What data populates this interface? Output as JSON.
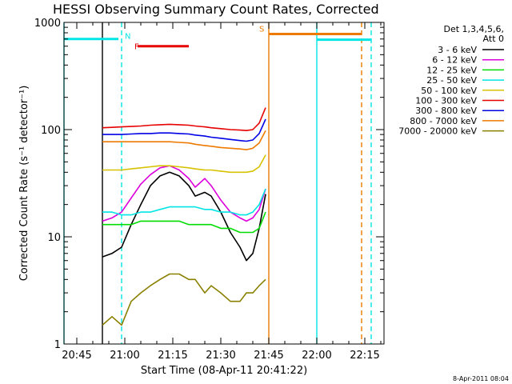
{
  "chart_data": {
    "type": "line",
    "title": "HESSI Observing Summary Count Rates, Corrected",
    "xlabel": "Start Time (08-Apr-11 20:41:22)",
    "ylabel": "Corrected Count Rate (s⁻¹ detector⁻¹)",
    "footer": "8-Apr-2011 08:04",
    "yscale": "log",
    "xlim": [
      "20:41",
      "22:21"
    ],
    "ylim": [
      1,
      1000
    ],
    "x_ticks": [
      "20:45",
      "21:00",
      "21:15",
      "21:30",
      "21:45",
      "22:00",
      "22:15"
    ],
    "y_ticks": [
      "1",
      "10",
      "100",
      "1000"
    ],
    "legend_header": [
      "Det 1,3,4,5,6,",
      "Att 0"
    ],
    "series": [
      {
        "name": "3 - 6 keV",
        "color": "#000000",
        "points": [
          [
            "20:53",
            6.5
          ],
          [
            "20:56",
            7
          ],
          [
            "20:59",
            8
          ],
          [
            "21:02",
            13
          ],
          [
            "21:05",
            20
          ],
          [
            "21:08",
            30
          ],
          [
            "21:11",
            37
          ],
          [
            "21:14",
            40
          ],
          [
            "21:17",
            37
          ],
          [
            "21:20",
            30
          ],
          [
            "21:22",
            24
          ],
          [
            "21:25",
            26
          ],
          [
            "21:27",
            24
          ],
          [
            "21:30",
            17
          ],
          [
            "21:33",
            11
          ],
          [
            "21:36",
            8
          ],
          [
            "21:38",
            6
          ],
          [
            "21:40",
            7
          ],
          [
            "21:42",
            12
          ],
          [
            "21:44",
            25
          ]
        ]
      },
      {
        "name": "6 - 12 keV",
        "color": "#dd00dd",
        "points": [
          [
            "20:53",
            14
          ],
          [
            "20:56",
            15
          ],
          [
            "20:59",
            17
          ],
          [
            "21:02",
            23
          ],
          [
            "21:05",
            31
          ],
          [
            "21:08",
            38
          ],
          [
            "21:11",
            44
          ],
          [
            "21:14",
            46
          ],
          [
            "21:17",
            42
          ],
          [
            "21:20",
            35
          ],
          [
            "21:22",
            29
          ],
          [
            "21:25",
            35
          ],
          [
            "21:27",
            30
          ],
          [
            "21:30",
            22
          ],
          [
            "21:33",
            17
          ],
          [
            "21:36",
            15
          ],
          [
            "21:38",
            14
          ],
          [
            "21:40",
            15
          ],
          [
            "21:42",
            18
          ],
          [
            "21:44",
            28
          ]
        ]
      },
      {
        "name": "12 - 25 keV",
        "color": "#00dd00",
        "points": [
          [
            "20:53",
            13
          ],
          [
            "20:56",
            13
          ],
          [
            "20:59",
            13
          ],
          [
            "21:02",
            13
          ],
          [
            "21:05",
            14
          ],
          [
            "21:08",
            14
          ],
          [
            "21:11",
            14
          ],
          [
            "21:14",
            14
          ],
          [
            "21:17",
            14
          ],
          [
            "21:20",
            13
          ],
          [
            "21:22",
            13
          ],
          [
            "21:25",
            13
          ],
          [
            "21:27",
            13
          ],
          [
            "21:30",
            12
          ],
          [
            "21:33",
            12
          ],
          [
            "21:36",
            11
          ],
          [
            "21:38",
            11
          ],
          [
            "21:40",
            11
          ],
          [
            "21:42",
            12
          ],
          [
            "21:44",
            17
          ]
        ]
      },
      {
        "name": "25 - 50 keV",
        "color": "#00e5e5",
        "points": [
          [
            "20:53",
            17
          ],
          [
            "20:56",
            17
          ],
          [
            "20:59",
            16
          ],
          [
            "21:02",
            16
          ],
          [
            "21:05",
            17
          ],
          [
            "21:08",
            17
          ],
          [
            "21:11",
            18
          ],
          [
            "21:14",
            19
          ],
          [
            "21:17",
            19
          ],
          [
            "21:20",
            19
          ],
          [
            "21:22",
            19
          ],
          [
            "21:25",
            18
          ],
          [
            "21:27",
            18
          ],
          [
            "21:30",
            17
          ],
          [
            "21:33",
            17
          ],
          [
            "21:36",
            16
          ],
          [
            "21:38",
            16
          ],
          [
            "21:40",
            17
          ],
          [
            "21:42",
            20
          ],
          [
            "21:44",
            28
          ]
        ]
      },
      {
        "name": "50 - 100 keV",
        "color": "#d6c200",
        "points": [
          [
            "20:53",
            42
          ],
          [
            "20:56",
            42
          ],
          [
            "20:59",
            42
          ],
          [
            "21:02",
            43
          ],
          [
            "21:05",
            44
          ],
          [
            "21:08",
            45
          ],
          [
            "21:11",
            46
          ],
          [
            "21:14",
            46
          ],
          [
            "21:17",
            45
          ],
          [
            "21:20",
            44
          ],
          [
            "21:22",
            43
          ],
          [
            "21:25",
            42
          ],
          [
            "21:27",
            42
          ],
          [
            "21:30",
            41
          ],
          [
            "21:33",
            40
          ],
          [
            "21:36",
            40
          ],
          [
            "21:38",
            40
          ],
          [
            "21:40",
            41
          ],
          [
            "21:42",
            45
          ],
          [
            "21:44",
            58
          ]
        ]
      },
      {
        "name": "100 - 300 keV",
        "color": "#e60000",
        "points": [
          [
            "20:53",
            104
          ],
          [
            "20:56",
            105
          ],
          [
            "20:59",
            106
          ],
          [
            "21:02",
            107
          ],
          [
            "21:05",
            108
          ],
          [
            "21:08",
            110
          ],
          [
            "21:11",
            111
          ],
          [
            "21:14",
            112
          ],
          [
            "21:17",
            111
          ],
          [
            "21:20",
            110
          ],
          [
            "21:22",
            108
          ],
          [
            "21:25",
            106
          ],
          [
            "21:27",
            104
          ],
          [
            "21:30",
            102
          ],
          [
            "21:33",
            100
          ],
          [
            "21:36",
            99
          ],
          [
            "21:38",
            98
          ],
          [
            "21:40",
            100
          ],
          [
            "21:42",
            115
          ],
          [
            "21:44",
            160
          ]
        ]
      },
      {
        "name": "300 - 800 keV",
        "color": "#0000e6",
        "points": [
          [
            "20:53",
            90
          ],
          [
            "20:56",
            90
          ],
          [
            "20:59",
            90
          ],
          [
            "21:02",
            91
          ],
          [
            "21:05",
            92
          ],
          [
            "21:08",
            92
          ],
          [
            "21:11",
            93
          ],
          [
            "21:14",
            93
          ],
          [
            "21:17",
            92
          ],
          [
            "21:20",
            91
          ],
          [
            "21:22",
            89
          ],
          [
            "21:25",
            87
          ],
          [
            "21:27",
            85
          ],
          [
            "21:30",
            83
          ],
          [
            "21:33",
            81
          ],
          [
            "21:36",
            79
          ],
          [
            "21:38",
            78
          ],
          [
            "21:40",
            80
          ],
          [
            "21:42",
            92
          ],
          [
            "21:44",
            125
          ]
        ]
      },
      {
        "name": "800 - 7000 keV",
        "color": "#ee7a00",
        "points": [
          [
            "20:53",
            77
          ],
          [
            "20:56",
            77
          ],
          [
            "20:59",
            77
          ],
          [
            "21:02",
            77
          ],
          [
            "21:05",
            77
          ],
          [
            "21:08",
            77
          ],
          [
            "21:11",
            77
          ],
          [
            "21:14",
            77
          ],
          [
            "21:17",
            76
          ],
          [
            "21:20",
            75
          ],
          [
            "21:22",
            73
          ],
          [
            "21:25",
            71
          ],
          [
            "21:27",
            70
          ],
          [
            "21:30",
            68
          ],
          [
            "21:33",
            67
          ],
          [
            "21:36",
            66
          ],
          [
            "21:38",
            65
          ],
          [
            "21:40",
            67
          ],
          [
            "21:42",
            75
          ],
          [
            "21:44",
            98
          ]
        ]
      },
      {
        "name": "7000 - 20000 keV",
        "color": "#8a8000",
        "points": [
          [
            "20:53",
            1.5
          ],
          [
            "20:56",
            1.8
          ],
          [
            "20:59",
            1.5
          ],
          [
            "21:02",
            2.5
          ],
          [
            "21:05",
            3
          ],
          [
            "21:08",
            3.5
          ],
          [
            "21:11",
            4
          ],
          [
            "21:14",
            4.5
          ],
          [
            "21:17",
            4.5
          ],
          [
            "21:20",
            4
          ],
          [
            "21:22",
            4
          ],
          [
            "21:25",
            3
          ],
          [
            "21:27",
            3.5
          ],
          [
            "21:30",
            3
          ],
          [
            "21:33",
            2.5
          ],
          [
            "21:36",
            2.5
          ],
          [
            "21:38",
            3
          ],
          [
            "21:40",
            3
          ],
          [
            "21:42",
            3.5
          ],
          [
            "21:44",
            4
          ]
        ]
      }
    ],
    "vertical_lines": [
      {
        "x": "20:41",
        "color": "#00e5e5",
        "style": "solid"
      },
      {
        "x": "20:53",
        "color": "#000000",
        "style": "solid"
      },
      {
        "x": "20:59",
        "color": "#00e5e5",
        "style": "dashed"
      },
      {
        "x": "21:45",
        "color": "#ee7a00",
        "style": "solid"
      },
      {
        "x": "22:00",
        "color": "#00e5e5",
        "style": "solid"
      },
      {
        "x": "22:14",
        "color": "#ee7a00",
        "style": "dashed"
      },
      {
        "x": "22:17",
        "color": "#00e5e5",
        "style": "dashed"
      }
    ],
    "intervals": [
      {
        "x0": "20:41",
        "x1": "20:58",
        "y": 700,
        "color": "#00e5e5"
      },
      {
        "x0": "21:04",
        "x1": "21:20",
        "y": 600,
        "color": "#e60000"
      },
      {
        "x0": "21:45",
        "x1": "22:14",
        "y": 780,
        "color": "#ee7a00"
      },
      {
        "x0": "22:00",
        "x1": "22:17",
        "y": 690,
        "color": "#00e5e5"
      }
    ],
    "annotations": [
      {
        "text": "N",
        "x": "21:00",
        "y": 750,
        "color": "#00e5e5"
      },
      {
        "text": "F",
        "x": "21:03",
        "y": 600,
        "color": "#e60000"
      },
      {
        "text": "S",
        "x": "21:42",
        "y": 880,
        "color": "#ee7a00"
      }
    ]
  }
}
